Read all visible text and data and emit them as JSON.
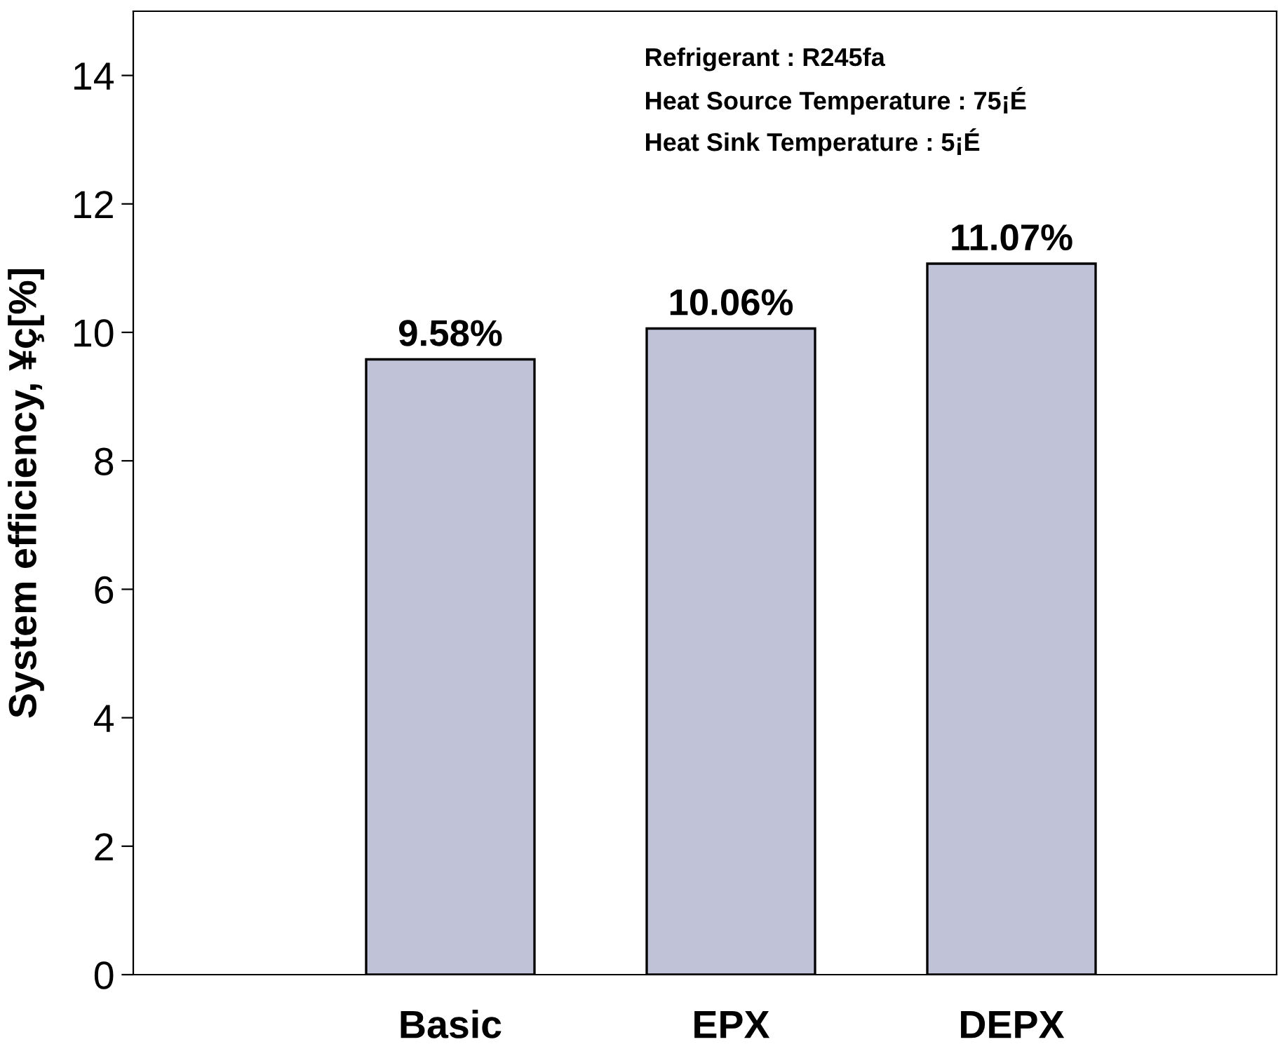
{
  "chart_data": {
    "type": "bar",
    "ylabel": "System efficiency, ¥ç[%]",
    "categories": [
      "Basic",
      "EPX",
      "DEPX"
    ],
    "values": [
      9.58,
      10.06,
      11.07
    ],
    "value_labels": [
      "9.58%",
      "10.06%",
      "11.07%"
    ],
    "color": "#c0c3d7",
    "ylim": [
      0,
      15
    ],
    "yticks": [
      0,
      2,
      4,
      6,
      8,
      10,
      12,
      14
    ],
    "grid": false,
    "annotations": [
      "Refrigerant : R245fa",
      "Heat Source Temperature : 75¡É",
      "Heat Sink Temperature : 5¡É"
    ]
  }
}
